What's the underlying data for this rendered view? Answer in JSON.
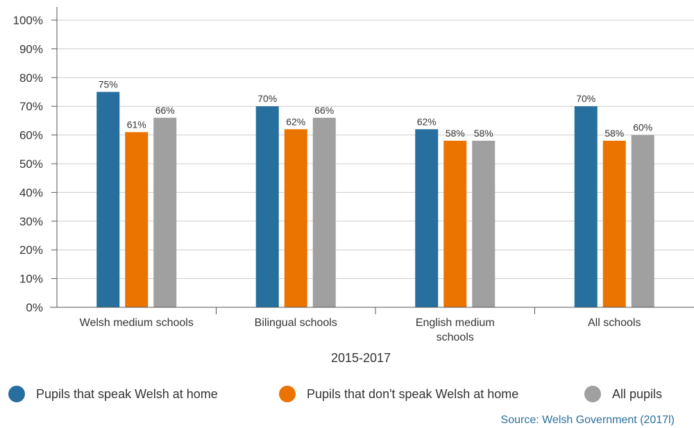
{
  "chart_data": {
    "type": "bar",
    "categories": [
      "Welsh medium schools",
      "Bilingual schools",
      "English medium\nschools",
      "All schools"
    ],
    "series": [
      {
        "name": "Pupils that speak Welsh at home",
        "color": "#266f9e",
        "values": [
          75,
          70,
          62,
          70
        ]
      },
      {
        "name": "Pupils that don't speak Welsh at home",
        "color": "#eb7300",
        "values": [
          61,
          62,
          58,
          58
        ]
      },
      {
        "name": "All pupils",
        "color": "#a0a0a0",
        "values": [
          66,
          66,
          58,
          60
        ]
      }
    ],
    "data_labels": [
      [
        "75%",
        "70%",
        "62%",
        "70%"
      ],
      [
        "61%",
        "62%",
        "58%",
        "58%"
      ],
      [
        "66%",
        "66%",
        "58%",
        "60%"
      ]
    ],
    "xlabel": "2015-2017",
    "ylabel": "",
    "ylim": [
      0,
      100
    ],
    "yticks": [
      "0%",
      "10%",
      "20%",
      "30%",
      "40%",
      "50%",
      "60%",
      "70%",
      "80%",
      "90%",
      "100%"
    ],
    "grid": true,
    "legend_position": "bottom"
  },
  "legend": {
    "item1": "Pupils that speak Welsh at home",
    "item2": "Pupils that don't speak Welsh at home",
    "item3": "All pupils"
  },
  "source": "Source: Welsh Government (2017l)"
}
